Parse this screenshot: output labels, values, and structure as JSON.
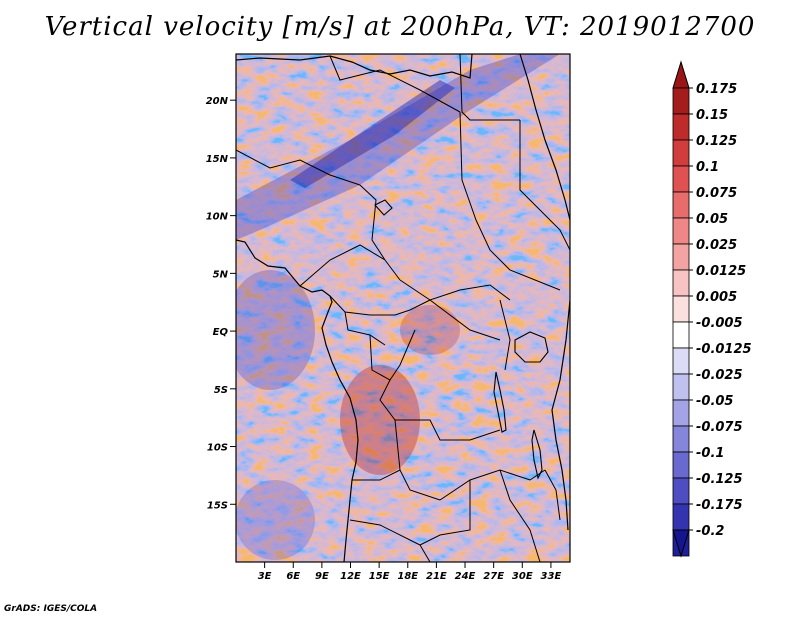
{
  "title": "Vertical velocity [m/s] at 200hPa, VT: 2019012700",
  "credit": "GrADS: IGES/COLA",
  "chart_data": {
    "type": "heatmap",
    "title": "Vertical velocity [m/s] at 200hPa, VT: 2019012700",
    "variable": "Vertical velocity",
    "units": "m/s",
    "level": "200hPa",
    "valid_time": "2019012700",
    "xlim": [
      0,
      35
    ],
    "ylim": [
      -20,
      24
    ],
    "x_ticks": [
      {
        "value": 3,
        "label": "3E"
      },
      {
        "value": 6,
        "label": "6E"
      },
      {
        "value": 9,
        "label": "9E"
      },
      {
        "value": 12,
        "label": "12E"
      },
      {
        "value": 15,
        "label": "15E"
      },
      {
        "value": 18,
        "label": "18E"
      },
      {
        "value": 21,
        "label": "21E"
      },
      {
        "value": 24,
        "label": "24E"
      },
      {
        "value": 27,
        "label": "27E"
      },
      {
        "value": 30,
        "label": "30E"
      },
      {
        "value": 33,
        "label": "33E"
      }
    ],
    "y_ticks": [
      {
        "value": 20,
        "label": "20N"
      },
      {
        "value": 15,
        "label": "15N"
      },
      {
        "value": 10,
        "label": "10N"
      },
      {
        "value": 5,
        "label": "5N"
      },
      {
        "value": 0,
        "label": "EQ"
      },
      {
        "value": -5,
        "label": "5S"
      },
      {
        "value": -10,
        "label": "10S"
      },
      {
        "value": -15,
        "label": "15S"
      }
    ],
    "colorbar": {
      "levels": [
        "0.175",
        "0.15",
        "0.125",
        "0.1",
        "0.075",
        "0.05",
        "0.025",
        "0.0125",
        "0.005",
        "-0.005",
        "-0.0125",
        "-0.025",
        "-0.05",
        "-0.075",
        "-0.1",
        "-0.125",
        "-0.175",
        "-0.2"
      ],
      "colors": [
        "#a41c1c",
        "#bd2b2b",
        "#d13c3c",
        "#e05252",
        "#e86c6c",
        "#ef8787",
        "#f4a3a3",
        "#f8c3c3",
        "#fbe0e0",
        "#ffffff",
        "#dcdcf6",
        "#c1c1f0",
        "#a3a3e6",
        "#8585dc",
        "#6969d0",
        "#4e4ec2",
        "#3434b0",
        "#1f1f9a"
      ],
      "extend_top_color": "#9a1515",
      "extend_bottom_color": "#151590"
    }
  }
}
